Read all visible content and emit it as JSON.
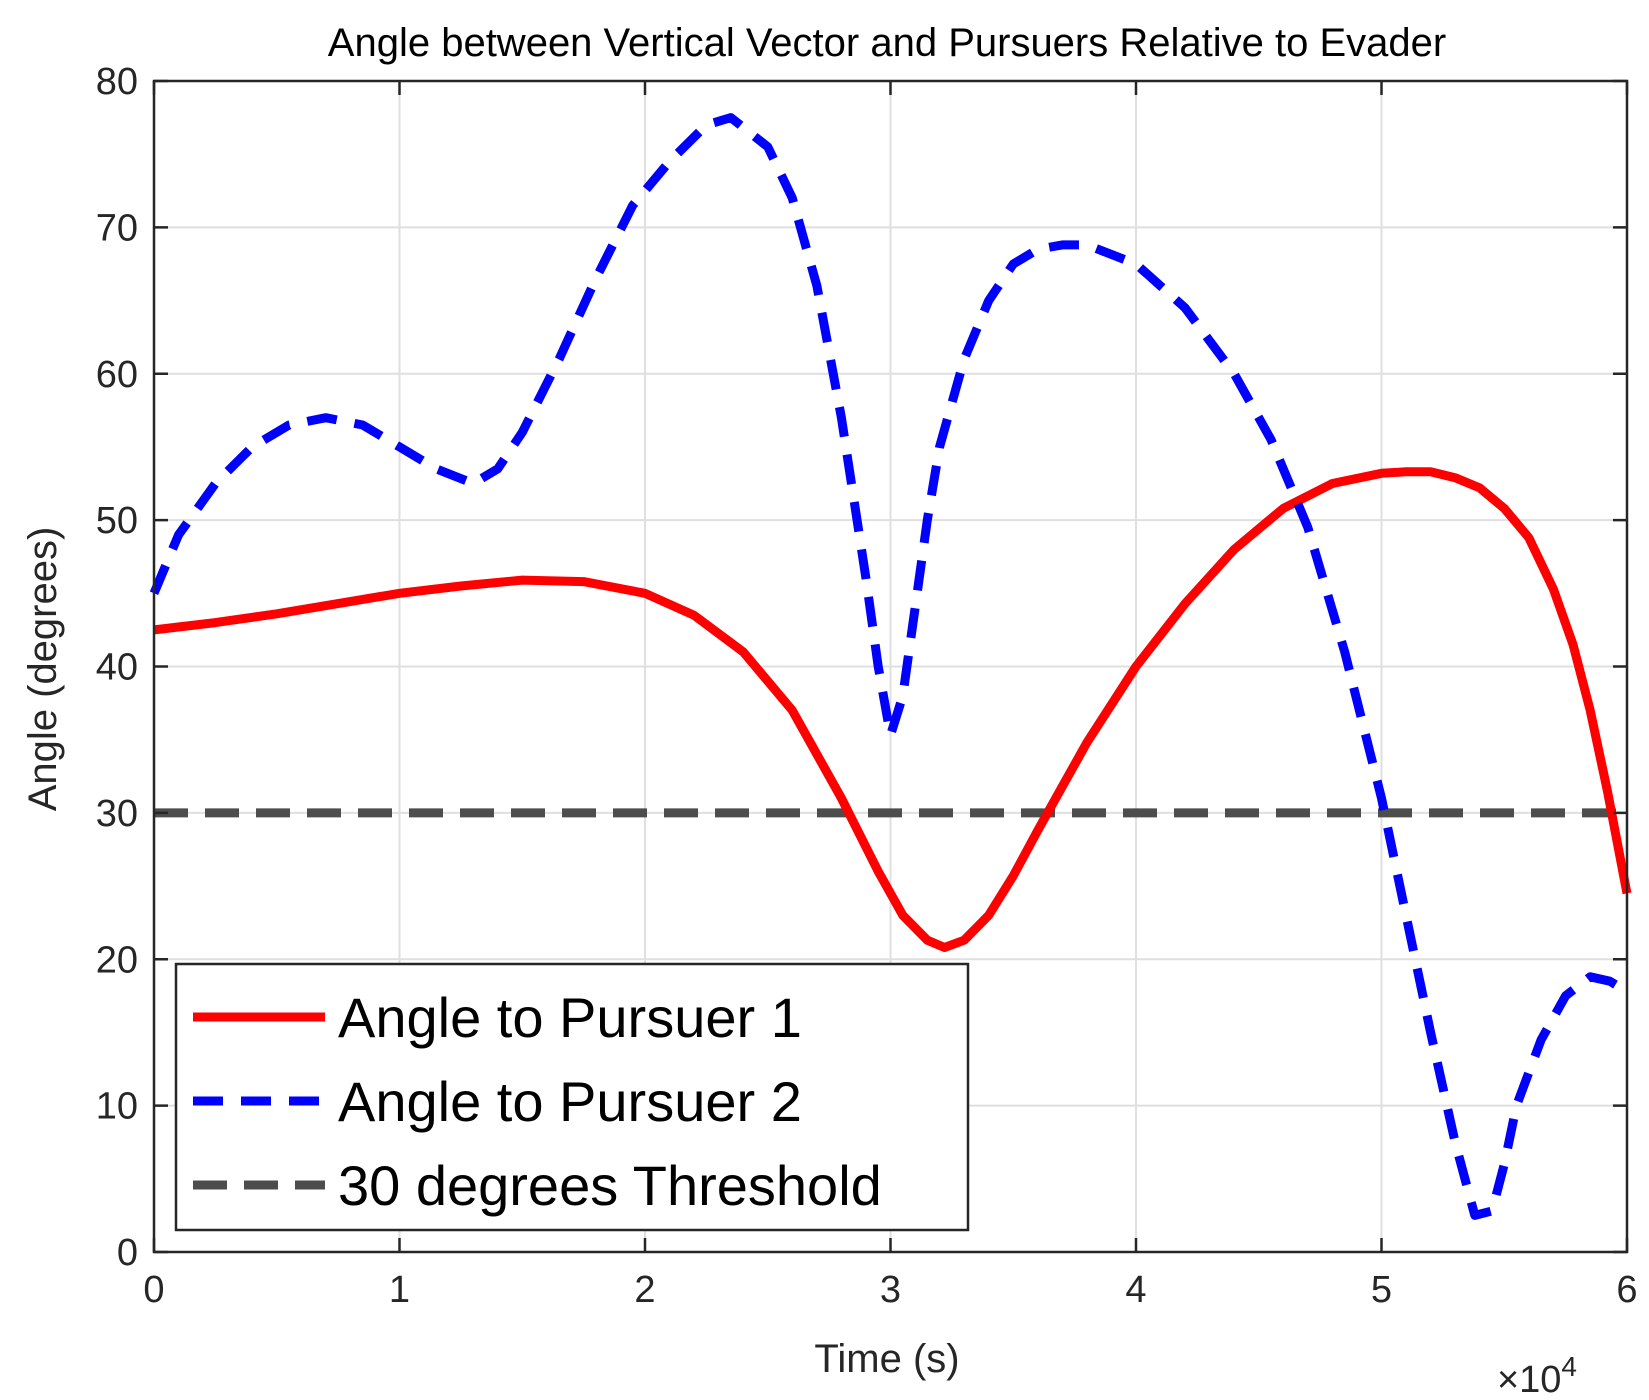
{
  "chart_data": {
    "type": "line",
    "title": "Angle between Vertical Vector and Pursuers Relative to Evader",
    "xlabel": "Time (s)",
    "ylabel": "Angle (degrees)",
    "x_exponent_label": "×10",
    "x_exponent_power": "4",
    "xlim": [
      0,
      60000
    ],
    "ylim": [
      0,
      80
    ],
    "grid": true,
    "legend_position": "bottom-left",
    "x_ticks": [
      0,
      10000,
      20000,
      30000,
      40000,
      50000,
      60000
    ],
    "x_tick_labels": [
      "0",
      "1",
      "2",
      "3",
      "4",
      "5",
      "6"
    ],
    "y_ticks": [
      0,
      10,
      20,
      30,
      40,
      50,
      60,
      70,
      80
    ],
    "y_tick_labels": [
      "0",
      "10",
      "20",
      "30",
      "40",
      "50",
      "60",
      "70",
      "80"
    ],
    "series": [
      {
        "name": "Angle to Pursuer 1",
        "color": "#ff0000",
        "style": "solid",
        "x": [
          0,
          2500,
          5000,
          7500,
          10000,
          12500,
          15000,
          17500,
          20000,
          22000,
          24000,
          26000,
          28000,
          29500,
          30500,
          31500,
          32200,
          33000,
          34000,
          35000,
          36000,
          37000,
          38000,
          40000,
          42000,
          44000,
          46000,
          48000,
          50000,
          51000,
          52000,
          53000,
          54000,
          55000,
          56000,
          57000,
          57800,
          58500,
          59200,
          60000
        ],
        "values": [
          42.5,
          43.0,
          43.6,
          44.3,
          45.0,
          45.5,
          45.9,
          45.8,
          45.0,
          43.5,
          41.0,
          37.0,
          31.0,
          26.0,
          23.0,
          21.3,
          20.8,
          21.3,
          23.0,
          25.7,
          28.8,
          31.8,
          34.8,
          40.0,
          44.3,
          48.0,
          50.8,
          52.5,
          53.2,
          53.3,
          53.3,
          52.9,
          52.2,
          50.8,
          48.8,
          45.3,
          41.5,
          37.0,
          31.5,
          24.5
        ]
      },
      {
        "name": "Angle to Pursuer 2",
        "color": "#0000ff",
        "style": "dashed",
        "x": [
          0,
          1000,
          2500,
          4000,
          5500,
          7000,
          8500,
          10000,
          11500,
          13000,
          14000,
          15000,
          16500,
          18000,
          19500,
          21000,
          22500,
          23500,
          25000,
          26000,
          27000,
          28000,
          29000,
          29500,
          30000,
          30500,
          31000,
          31500,
          32000,
          33000,
          34000,
          35000,
          36000,
          37000,
          38000,
          40000,
          42000,
          44000,
          45500,
          47000,
          48500,
          50000,
          51000,
          52000,
          53000,
          53800,
          54500,
          55000,
          55500,
          56500,
          57500,
          58500,
          59300,
          60000
        ],
        "values": [
          45.0,
          49.0,
          52.5,
          55.0,
          56.5,
          57.0,
          56.5,
          55.0,
          53.5,
          52.5,
          53.5,
          56.0,
          61.0,
          66.5,
          71.5,
          74.5,
          77.0,
          77.5,
          75.5,
          72.0,
          66.0,
          57.0,
          46.0,
          40.0,
          35.3,
          38.0,
          44.0,
          50.0,
          55.0,
          61.0,
          65.0,
          67.5,
          68.5,
          68.8,
          68.8,
          67.5,
          64.5,
          60.0,
          55.5,
          49.5,
          41.0,
          31.0,
          23.0,
          15.0,
          7.5,
          2.5,
          2.8,
          6.0,
          10.0,
          14.5,
          17.5,
          18.8,
          18.5,
          17.8
        ]
      },
      {
        "name": "30 degrees Threshold",
        "color": "#4d4d4d",
        "style": "dashed",
        "x": [
          0,
          60000
        ],
        "values": [
          30,
          30
        ]
      }
    ]
  }
}
